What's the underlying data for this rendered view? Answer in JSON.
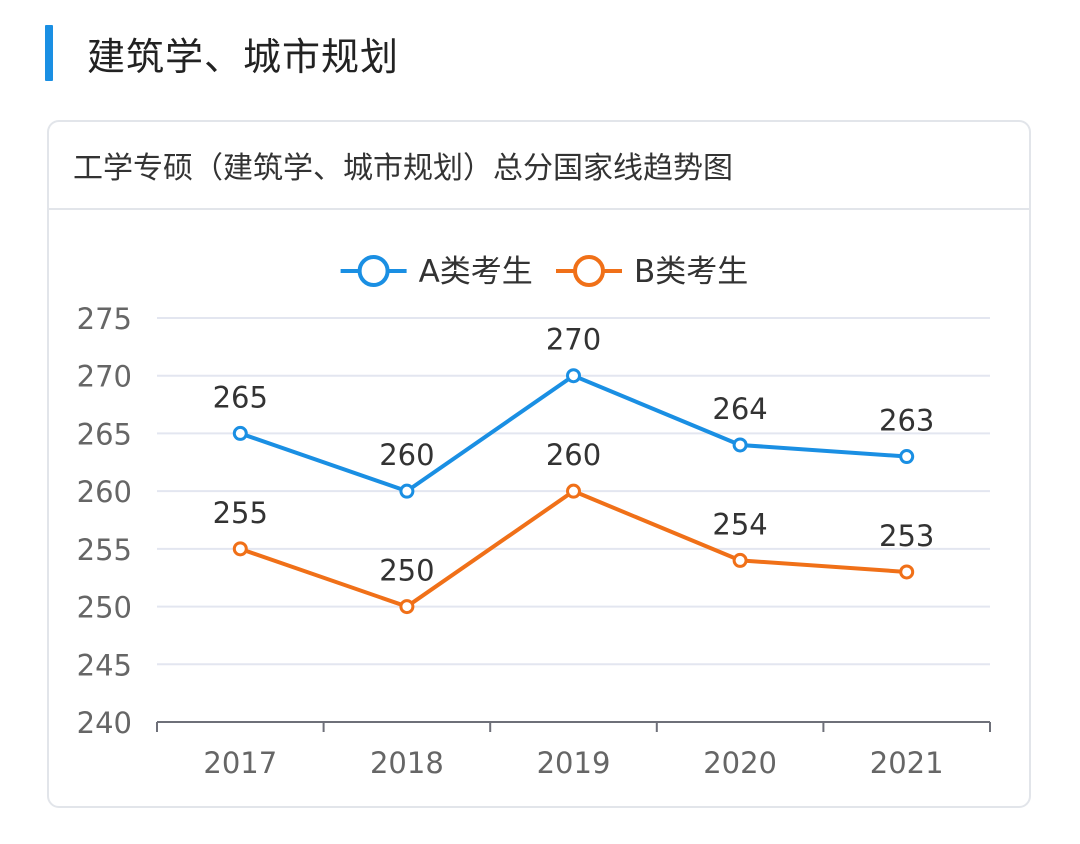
{
  "section": {
    "title": "建筑学、城市规划"
  },
  "card": {
    "title": "工学专硕（建筑学、城市规划）总分国家线趋势图"
  },
  "chart_data": {
    "type": "line",
    "categories": [
      "2017",
      "2018",
      "2019",
      "2020",
      "2021"
    ],
    "series": [
      {
        "name": "A类考生",
        "values": [
          265,
          260,
          270,
          264,
          263
        ],
        "color": "#1a8fe3"
      },
      {
        "name": "B类考生",
        "values": [
          255,
          250,
          260,
          254,
          253
        ],
        "color": "#f07018"
      }
    ],
    "ylim": [
      240,
      275
    ],
    "yticks": [
      240,
      245,
      250,
      255,
      260,
      265,
      270,
      275
    ],
    "grid": true,
    "legend": "top-center",
    "data_labels": true
  }
}
